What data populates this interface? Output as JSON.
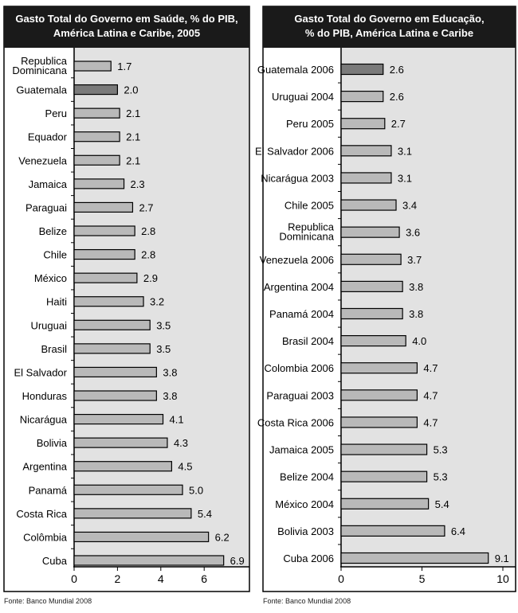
{
  "chart_data": [
    {
      "type": "bar",
      "orientation": "horizontal",
      "title": "Gasto Total do Governo em Saúde, % do PIB, América Latina e Caribe, 2005",
      "title_lines": [
        "Gasto Total do Governo em Saúde, % do PIB,",
        "América Latina e Caribe, 2005"
      ],
      "categories": [
        "Republica Dominicana",
        "Guatemala",
        "Peru",
        "Equador",
        "Venezuela",
        "Jamaica",
        "Paraguai",
        "Belize",
        "Chile",
        "México",
        "Haiti",
        "Uruguai",
        "Brasil",
        "El Salvador",
        "Honduras",
        "Nicarágua",
        "Bolivia",
        "Argentina",
        "Panamá",
        "Costa Rica",
        "Colômbia",
        "Cuba"
      ],
      "values": [
        1.7,
        2.0,
        2.1,
        2.1,
        2.1,
        2.3,
        2.7,
        2.8,
        2.8,
        2.9,
        3.2,
        3.5,
        3.5,
        3.8,
        3.8,
        4.1,
        4.3,
        4.5,
        5.0,
        5.4,
        6.2,
        6.9
      ],
      "value_labels": [
        "1.7",
        "2.0",
        "2.1",
        "2.1",
        "2.1",
        "2.3",
        "2.7",
        "2.8",
        "2.8",
        "2.9",
        "3.2",
        "3.5",
        "3.5",
        "3.8",
        "3.8",
        "4.1",
        "4.3",
        "4.5",
        "5.0",
        "5.4",
        "6.2",
        "6.9"
      ],
      "highlight": "Guatemala",
      "xticks": [
        "0",
        "2",
        "4",
        "6"
      ],
      "xlim": [
        0,
        8
      ],
      "source": "Fonte: Banco Mundial 2008"
    },
    {
      "type": "bar",
      "orientation": "horizontal",
      "title": "Gasto Total do Governo em Educação, % do PIB, América Latina e Caribe",
      "title_lines": [
        "Gasto Total do Governo em Educação,",
        "% do PIB, América Latina e Caribe"
      ],
      "categories": [
        "Guatemala 2006",
        "Uruguai 2004",
        "Peru 2005",
        "El Salvador 2006",
        "Nicarágua 2003",
        "Chile 2005",
        "Republica Dominicana",
        "Venezuela 2006",
        "Argentina 2004",
        "Panamá 2004",
        "Brasil 2004",
        "Colombia 2006",
        "Paraguai 2003",
        "Costa Rica 2006",
        "Jamaica 2005",
        "Belize 2004",
        "México 2004",
        "Bolivia 2003",
        "Cuba 2006"
      ],
      "values": [
        2.6,
        2.6,
        2.7,
        3.1,
        3.1,
        3.4,
        3.6,
        3.7,
        3.8,
        3.8,
        4.0,
        4.7,
        4.7,
        4.7,
        5.3,
        5.3,
        5.4,
        6.4,
        9.1
      ],
      "value_labels": [
        "2.6",
        "2.6",
        "2.7",
        "3.1",
        "3.1",
        "3.4",
        "3.6",
        "3.7",
        "3.8",
        "3.8",
        "4.0",
        "4.7",
        "4.7",
        "4.7",
        "5.3",
        "5.3",
        "5.4",
        "6.4",
        "9.1"
      ],
      "highlight": "Guatemala 2006",
      "xticks": [
        "0",
        "5",
        "10"
      ],
      "xlim": [
        0,
        10.7
      ],
      "source": "Fonte: Banco Mundial 2008"
    }
  ],
  "colors": {
    "bar": "#b9b9b9",
    "highlight": "#7a7a7a",
    "plot_bg": "#e2e2e2",
    "header": "#1a1a1a"
  }
}
